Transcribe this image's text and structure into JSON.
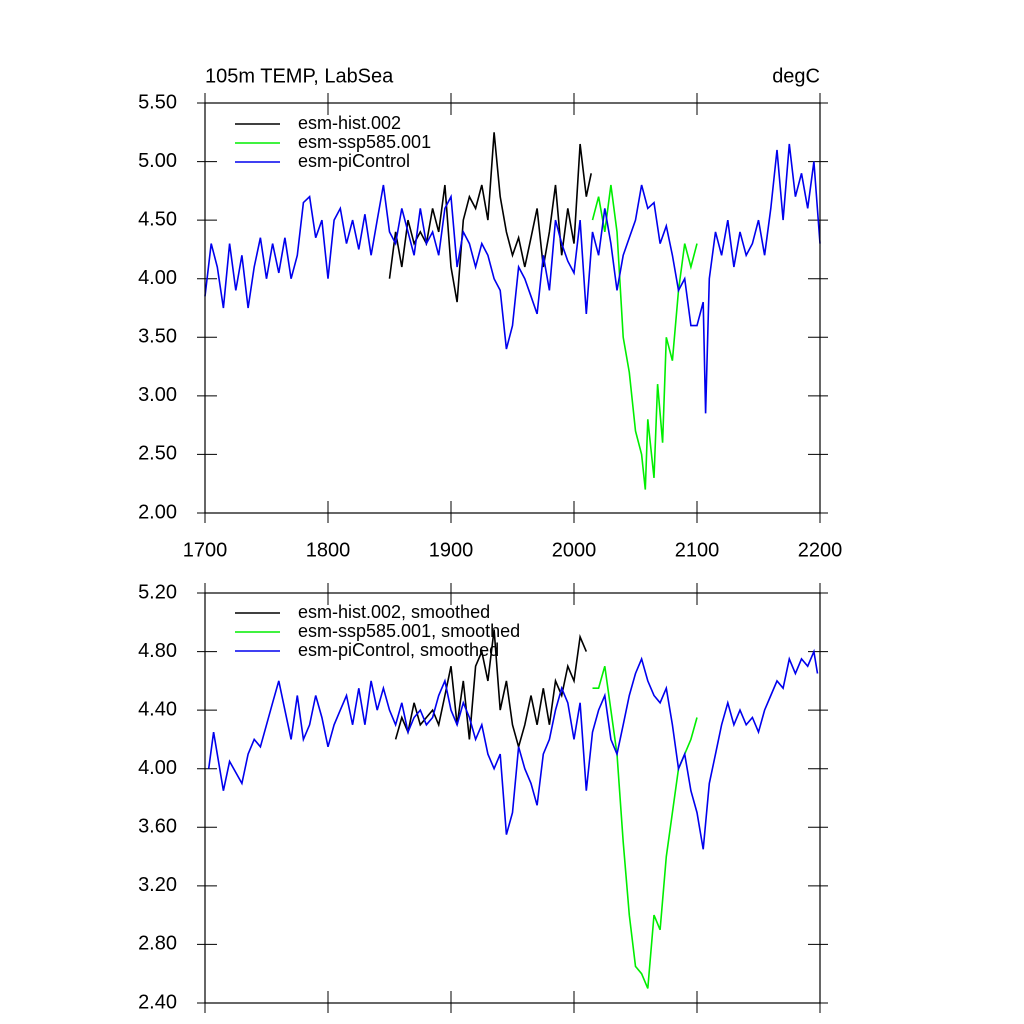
{
  "chart_data": [
    {
      "type": "line",
      "title": "105m TEMP, LabSea",
      "units": "degC",
      "legend": "upper left",
      "xlim": [
        1700,
        2200
      ],
      "xticks": [
        1700,
        1800,
        1900,
        2000,
        2100,
        2200
      ],
      "ylim": [
        2.0,
        5.5
      ],
      "yticks": [
        {
          "value": 2.0,
          "label": "2.00"
        },
        {
          "value": 2.5,
          "label": "2.50"
        },
        {
          "value": 3.0,
          "label": "3.00"
        },
        {
          "value": 3.5,
          "label": "3.50"
        },
        {
          "value": 4.0,
          "label": "4.00"
        },
        {
          "value": 4.5,
          "label": "4.50"
        },
        {
          "value": 5.0,
          "label": "5.00"
        },
        {
          "value": 5.5,
          "label": "5.50"
        }
      ],
      "series": [
        {
          "name": "esm-hist.002",
          "color": "#000000",
          "x": [
            1850,
            1855,
            1860,
            1865,
            1870,
            1875,
            1880,
            1885,
            1890,
            1895,
            1900,
            1905,
            1910,
            1915,
            1920,
            1925,
            1930,
            1935,
            1940,
            1945,
            1950,
            1955,
            1960,
            1965,
            1970,
            1975,
            1980,
            1985,
            1990,
            1995,
            2000,
            2005,
            2010,
            2014
          ],
          "values": [
            4.0,
            4.4,
            4.1,
            4.5,
            4.3,
            4.4,
            4.3,
            4.6,
            4.4,
            4.8,
            4.1,
            3.8,
            4.5,
            4.7,
            4.6,
            4.8,
            4.5,
            5.25,
            4.7,
            4.4,
            4.2,
            4.35,
            4.1,
            4.35,
            4.6,
            4.1,
            4.4,
            4.8,
            4.2,
            4.6,
            4.3,
            5.15,
            4.7,
            4.9
          ]
        },
        {
          "name": "esm-ssp585.001",
          "color": "#00ee00",
          "x": [
            2015,
            2020,
            2025,
            2030,
            2035,
            2040,
            2045,
            2050,
            2055,
            2058,
            2060,
            2065,
            2068,
            2072,
            2075,
            2080,
            2085,
            2090,
            2095,
            2100
          ],
          "values": [
            4.5,
            4.7,
            4.4,
            4.8,
            4.4,
            3.5,
            3.2,
            2.7,
            2.5,
            2.2,
            2.8,
            2.3,
            3.1,
            2.6,
            3.5,
            3.3,
            3.9,
            4.3,
            4.1,
            4.3
          ]
        },
        {
          "name": "esm-piControl",
          "color": "#0000ee",
          "x": [
            1700,
            1705,
            1710,
            1715,
            1720,
            1725,
            1730,
            1735,
            1740,
            1745,
            1750,
            1755,
            1760,
            1765,
            1770,
            1775,
            1780,
            1785,
            1790,
            1795,
            1800,
            1805,
            1810,
            1815,
            1820,
            1825,
            1830,
            1835,
            1840,
            1845,
            1850,
            1855,
            1860,
            1865,
            1870,
            1875,
            1880,
            1885,
            1890,
            1895,
            1900,
            1905,
            1910,
            1915,
            1920,
            1925,
            1930,
            1935,
            1940,
            1945,
            1950,
            1955,
            1960,
            1965,
            1970,
            1975,
            1980,
            1985,
            1990,
            1995,
            2000,
            2005,
            2010,
            2015,
            2020,
            2025,
            2030,
            2035,
            2040,
            2045,
            2050,
            2055,
            2060,
            2065,
            2070,
            2075,
            2080,
            2085,
            2090,
            2095,
            2100,
            2105,
            2107,
            2110,
            2115,
            2120,
            2125,
            2130,
            2135,
            2140,
            2145,
            2150,
            2155,
            2160,
            2165,
            2170,
            2175,
            2180,
            2185,
            2190,
            2195,
            2200
          ],
          "values": [
            3.85,
            4.3,
            4.1,
            3.75,
            4.3,
            3.9,
            4.2,
            3.75,
            4.1,
            4.35,
            4.0,
            4.3,
            4.05,
            4.35,
            4.0,
            4.2,
            4.65,
            4.7,
            4.35,
            4.5,
            4.0,
            4.5,
            4.6,
            4.3,
            4.5,
            4.25,
            4.55,
            4.2,
            4.5,
            4.8,
            4.4,
            4.3,
            4.6,
            4.4,
            4.2,
            4.6,
            4.3,
            4.4,
            4.2,
            4.6,
            4.7,
            4.1,
            4.4,
            4.3,
            4.1,
            4.3,
            4.2,
            4.0,
            3.9,
            3.4,
            3.6,
            4.1,
            4.0,
            3.85,
            3.7,
            4.2,
            3.9,
            4.5,
            4.3,
            4.15,
            4.05,
            4.5,
            3.7,
            4.4,
            4.2,
            4.6,
            4.3,
            3.9,
            4.2,
            4.35,
            4.5,
            4.8,
            4.6,
            4.65,
            4.3,
            4.45,
            4.2,
            3.9,
            4.0,
            3.6,
            3.6,
            3.8,
            2.85,
            4.0,
            4.4,
            4.2,
            4.5,
            4.1,
            4.4,
            4.2,
            4.3,
            4.5,
            4.2,
            4.6,
            5.1,
            4.5,
            5.15,
            4.7,
            4.9,
            4.6,
            5.0,
            4.3
          ]
        }
      ]
    },
    {
      "type": "line",
      "legend": "upper left",
      "xlim": [
        1700,
        2200
      ],
      "xticks": [
        1700,
        1800,
        1900,
        2000,
        2100,
        2200
      ],
      "ylim": [
        2.4,
        5.2
      ],
      "yticks": [
        {
          "value": 2.4,
          "label": "2.40"
        },
        {
          "value": 2.8,
          "label": "2.80"
        },
        {
          "value": 3.2,
          "label": "3.20"
        },
        {
          "value": 3.6,
          "label": "3.60"
        },
        {
          "value": 4.0,
          "label": "4.00"
        },
        {
          "value": 4.4,
          "label": "4.40"
        },
        {
          "value": 4.8,
          "label": "4.80"
        },
        {
          "value": 5.2,
          "label": "5.20"
        }
      ],
      "series": [
        {
          "name": "esm-hist.002, smoothed",
          "color": "#000000",
          "x": [
            1855,
            1860,
            1865,
            1870,
            1875,
            1880,
            1885,
            1890,
            1895,
            1900,
            1905,
            1910,
            1915,
            1920,
            1925,
            1930,
            1935,
            1940,
            1945,
            1950,
            1955,
            1960,
            1965,
            1970,
            1975,
            1980,
            1985,
            1990,
            1995,
            2000,
            2005,
            2010
          ],
          "values": [
            4.2,
            4.35,
            4.25,
            4.45,
            4.3,
            4.35,
            4.4,
            4.3,
            4.5,
            4.7,
            4.3,
            4.6,
            4.2,
            4.7,
            4.8,
            4.6,
            4.95,
            4.4,
            4.6,
            4.3,
            4.15,
            4.3,
            4.5,
            4.3,
            4.55,
            4.3,
            4.6,
            4.5,
            4.7,
            4.6,
            4.9,
            4.8
          ]
        },
        {
          "name": "esm-ssp585.001, smoothed",
          "color": "#00ee00",
          "x": [
            2015,
            2020,
            2025,
            2030,
            2035,
            2040,
            2045,
            2050,
            2055,
            2060,
            2065,
            2070,
            2075,
            2080,
            2085,
            2090,
            2095,
            2100
          ],
          "values": [
            4.55,
            4.55,
            4.7,
            4.4,
            4.1,
            3.5,
            3.0,
            2.65,
            2.6,
            2.5,
            3.0,
            2.9,
            3.4,
            3.7,
            4.0,
            4.1,
            4.2,
            4.35
          ]
        },
        {
          "name": "esm-piControl, smoothed",
          "color": "#0000ee",
          "x": [
            1703,
            1707,
            1715,
            1720,
            1730,
            1735,
            1740,
            1745,
            1755,
            1760,
            1765,
            1770,
            1775,
            1780,
            1785,
            1790,
            1795,
            1800,
            1805,
            1810,
            1815,
            1820,
            1825,
            1830,
            1835,
            1840,
            1845,
            1850,
            1855,
            1860,
            1865,
            1870,
            1875,
            1880,
            1885,
            1890,
            1895,
            1900,
            1905,
            1910,
            1915,
            1920,
            1925,
            1930,
            1935,
            1940,
            1945,
            1950,
            1955,
            1960,
            1965,
            1970,
            1975,
            1980,
            1985,
            1990,
            1995,
            2000,
            2005,
            2010,
            2015,
            2020,
            2025,
            2030,
            2035,
            2040,
            2045,
            2050,
            2055,
            2060,
            2065,
            2070,
            2075,
            2080,
            2085,
            2090,
            2095,
            2100,
            2105,
            2110,
            2115,
            2120,
            2125,
            2130,
            2135,
            2140,
            2145,
            2150,
            2155,
            2160,
            2165,
            2170,
            2175,
            2180,
            2185,
            2190,
            2195,
            2198
          ],
          "values": [
            4.0,
            4.25,
            3.85,
            4.05,
            3.9,
            4.1,
            4.2,
            4.15,
            4.45,
            4.6,
            4.4,
            4.2,
            4.5,
            4.2,
            4.3,
            4.5,
            4.35,
            4.15,
            4.3,
            4.4,
            4.5,
            4.3,
            4.55,
            4.3,
            4.6,
            4.4,
            4.55,
            4.4,
            4.3,
            4.45,
            4.25,
            4.35,
            4.4,
            4.3,
            4.35,
            4.5,
            4.6,
            4.4,
            4.3,
            4.45,
            4.35,
            4.2,
            4.3,
            4.1,
            4.0,
            4.1,
            3.55,
            3.7,
            4.15,
            4.0,
            3.9,
            3.75,
            4.1,
            4.2,
            4.4,
            4.55,
            4.45,
            4.2,
            4.45,
            3.85,
            4.25,
            4.4,
            4.5,
            4.2,
            4.1,
            4.3,
            4.5,
            4.65,
            4.75,
            4.6,
            4.5,
            4.45,
            4.55,
            4.3,
            4.0,
            4.1,
            3.85,
            3.7,
            3.45,
            3.9,
            4.1,
            4.3,
            4.45,
            4.3,
            4.4,
            4.3,
            4.35,
            4.25,
            4.4,
            4.5,
            4.6,
            4.55,
            4.75,
            4.65,
            4.75,
            4.7,
            4.8,
            4.65
          ]
        }
      ]
    }
  ]
}
